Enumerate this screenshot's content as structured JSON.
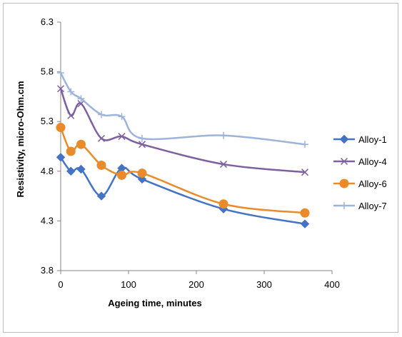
{
  "chart_data": {
    "type": "line",
    "xlabel": "Ageing time, minutes",
    "ylabel": "Resistivity, micro-Ohm.cm",
    "xlim": [
      0,
      400
    ],
    "ylim": [
      3.8,
      6.3
    ],
    "x_ticks": [
      0,
      100,
      200,
      300,
      400
    ],
    "y_ticks": [
      3.8,
      4.3,
      4.8,
      5.3,
      5.8,
      6.3
    ],
    "x_tick_labels": [
      "0",
      "100",
      "200",
      "300",
      "400"
    ],
    "y_tick_labels": [
      "3.8",
      "4.3",
      "4.8",
      "5.3",
      "5.8",
      "6.3"
    ],
    "grid": false,
    "legend_position": "right",
    "smooth": true,
    "series": [
      {
        "name": "Alloy-1",
        "color": "#4472C4",
        "marker": "diamond",
        "x": [
          0,
          15,
          30,
          60,
          90,
          120,
          240,
          360
        ],
        "y": [
          4.94,
          4.8,
          4.82,
          4.55,
          4.83,
          4.72,
          4.42,
          4.27
        ]
      },
      {
        "name": "Alloy-4",
        "color": "#7D60A0",
        "marker": "x",
        "x": [
          0,
          15,
          30,
          60,
          90,
          120,
          240,
          360
        ],
        "y": [
          5.63,
          5.36,
          5.48,
          5.13,
          5.15,
          5.07,
          4.87,
          4.79
        ]
      },
      {
        "name": "Alloy-6",
        "color": "#E98B2A",
        "marker": "circle",
        "x": [
          0,
          15,
          30,
          60,
          90,
          120,
          240,
          360
        ],
        "y": [
          5.24,
          5.0,
          5.07,
          4.86,
          4.76,
          4.78,
          4.47,
          4.38
        ]
      },
      {
        "name": "Alloy-7",
        "color": "#9DB3DC",
        "marker": "plus",
        "x": [
          0,
          15,
          30,
          60,
          90,
          120,
          240,
          360
        ],
        "y": [
          5.79,
          5.6,
          5.53,
          5.37,
          5.35,
          5.13,
          5.16,
          5.07
        ]
      }
    ]
  }
}
